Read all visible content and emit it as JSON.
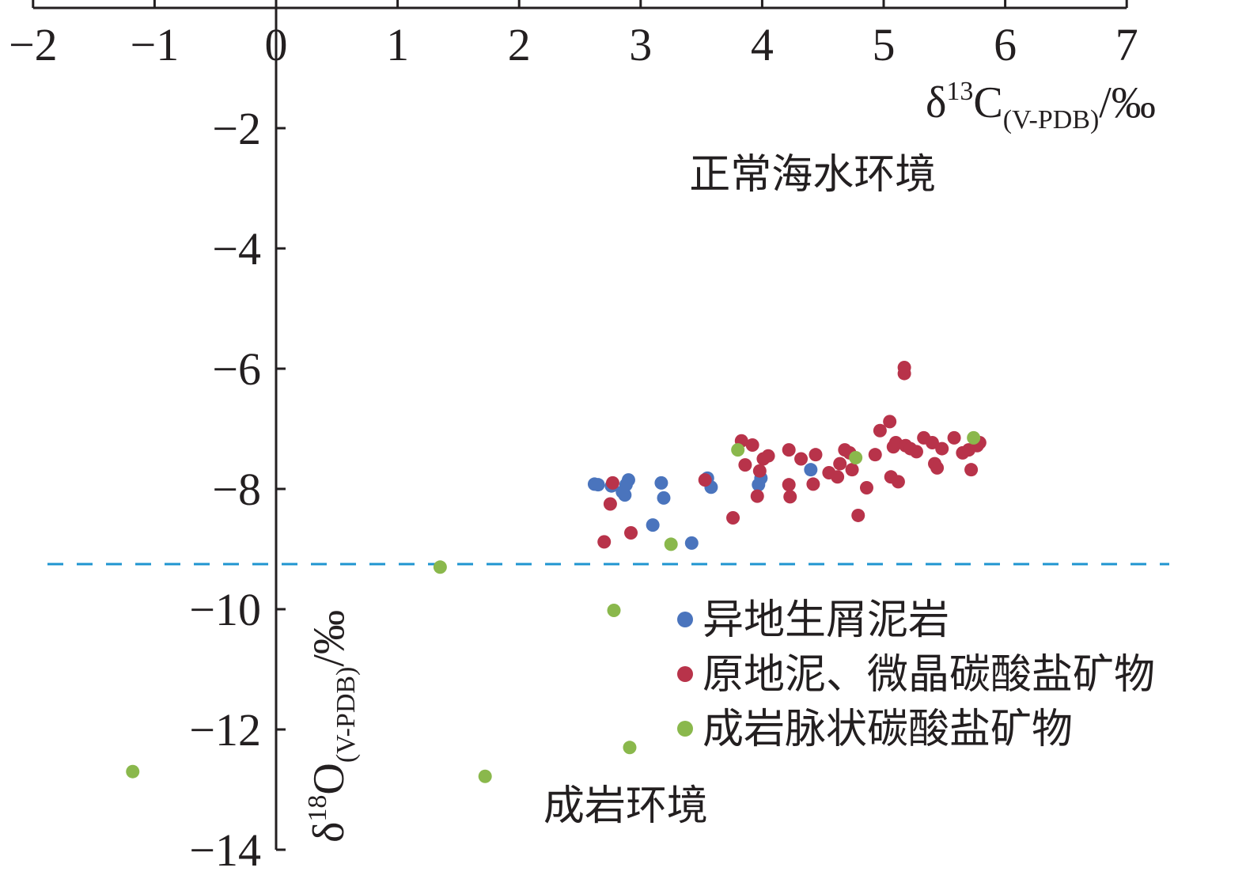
{
  "chart_data": {
    "type": "scatter",
    "x_axis": {
      "label": {
        "main": "δ",
        "sup": "13",
        "element": "C",
        "sub": "(V-PDB)",
        "unit": "/‰"
      },
      "range": [
        -2,
        7
      ],
      "ticks": [
        -2,
        -1,
        0,
        1,
        2,
        3,
        4,
        5,
        6,
        7
      ],
      "tick_labels": [
        "−2",
        "−1",
        "0",
        "1",
        "2",
        "3",
        "4",
        "5",
        "6",
        "7"
      ],
      "position": "top"
    },
    "y_axis": {
      "label": {
        "main": "δ",
        "sup": "18",
        "element": "O",
        "sub": "(V-PDB)",
        "unit": "/‰"
      },
      "range": [
        -14,
        0
      ],
      "ticks": [
        -2,
        -4,
        -6,
        -8,
        -10,
        -12,
        -14
      ],
      "tick_labels": [
        "−2",
        "−4",
        "−6",
        "−8",
        "−10",
        "−12",
        "−14"
      ]
    },
    "threshold_line": {
      "y": -9.25,
      "color": "#1f95d0",
      "style": "dashed"
    },
    "annotations": [
      {
        "text": "正常海水环境",
        "x": 3.4,
        "y": -3.0
      },
      {
        "text": "成岩环境",
        "x": 2.2,
        "y": -13.5
      }
    ],
    "legend_position": "lower-right",
    "grid": false,
    "series": [
      {
        "name": "异地生屑泥岩",
        "color": "#4a74bd",
        "points": [
          [
            2.62,
            -7.92
          ],
          [
            2.65,
            -7.93
          ],
          [
            2.76,
            -7.95
          ],
          [
            2.85,
            -8.05
          ],
          [
            2.87,
            -8.1
          ],
          [
            2.9,
            -7.85
          ],
          [
            2.88,
            -7.93
          ],
          [
            3.17,
            -7.9
          ],
          [
            3.19,
            -8.15
          ],
          [
            3.1,
            -8.6
          ],
          [
            3.42,
            -8.9
          ],
          [
            3.55,
            -7.82
          ],
          [
            3.58,
            -7.97
          ],
          [
            3.97,
            -7.93
          ],
          [
            3.99,
            -7.82
          ],
          [
            4.4,
            -7.68
          ]
        ]
      },
      {
        "name": "原地泥、微晶碳酸盐矿物",
        "color": "#b8334a",
        "points": [
          [
            2.7,
            -8.88
          ],
          [
            2.75,
            -8.25
          ],
          [
            2.77,
            -7.9
          ],
          [
            2.92,
            -8.73
          ],
          [
            3.53,
            -7.85
          ],
          [
            3.76,
            -8.48
          ],
          [
            3.83,
            -7.2
          ],
          [
            3.86,
            -7.6
          ],
          [
            3.92,
            -7.27
          ],
          [
            3.96,
            -8.12
          ],
          [
            3.98,
            -7.7
          ],
          [
            4.01,
            -7.5
          ],
          [
            4.05,
            -7.45
          ],
          [
            4.22,
            -7.35
          ],
          [
            4.22,
            -7.93
          ],
          [
            4.23,
            -8.13
          ],
          [
            4.32,
            -7.5
          ],
          [
            4.42,
            -7.92
          ],
          [
            4.44,
            -7.43
          ],
          [
            4.55,
            -7.73
          ],
          [
            4.62,
            -7.8
          ],
          [
            4.64,
            -7.58
          ],
          [
            4.68,
            -7.35
          ],
          [
            4.72,
            -7.4
          ],
          [
            4.74,
            -7.68
          ],
          [
            4.79,
            -8.44
          ],
          [
            4.86,
            -7.98
          ],
          [
            4.93,
            -7.43
          ],
          [
            4.97,
            -7.03
          ],
          [
            5.05,
            -6.88
          ],
          [
            5.06,
            -7.8
          ],
          [
            5.08,
            -7.3
          ],
          [
            5.1,
            -7.23
          ],
          [
            5.12,
            -7.88
          ],
          [
            5.17,
            -5.98
          ],
          [
            5.17,
            -6.08
          ],
          [
            5.18,
            -7.28
          ],
          [
            5.22,
            -7.33
          ],
          [
            5.27,
            -7.38
          ],
          [
            5.33,
            -7.15
          ],
          [
            5.4,
            -7.23
          ],
          [
            5.42,
            -7.58
          ],
          [
            5.44,
            -7.65
          ],
          [
            5.48,
            -7.33
          ],
          [
            5.58,
            -7.15
          ],
          [
            5.65,
            -7.4
          ],
          [
            5.7,
            -7.35
          ],
          [
            5.72,
            -7.68
          ],
          [
            5.77,
            -7.28
          ],
          [
            5.79,
            -7.23
          ]
        ]
      },
      {
        "name": "成岩脉状碳酸盐矿物",
        "color": "#8ab84c",
        "points": [
          [
            -1.18,
            -12.7
          ],
          [
            1.35,
            -9.3
          ],
          [
            1.72,
            -12.78
          ],
          [
            2.78,
            -10.02
          ],
          [
            2.91,
            -12.3
          ],
          [
            3.25,
            -8.92
          ],
          [
            3.8,
            -7.35
          ],
          [
            4.77,
            -7.48
          ],
          [
            5.74,
            -7.15
          ]
        ]
      }
    ]
  }
}
